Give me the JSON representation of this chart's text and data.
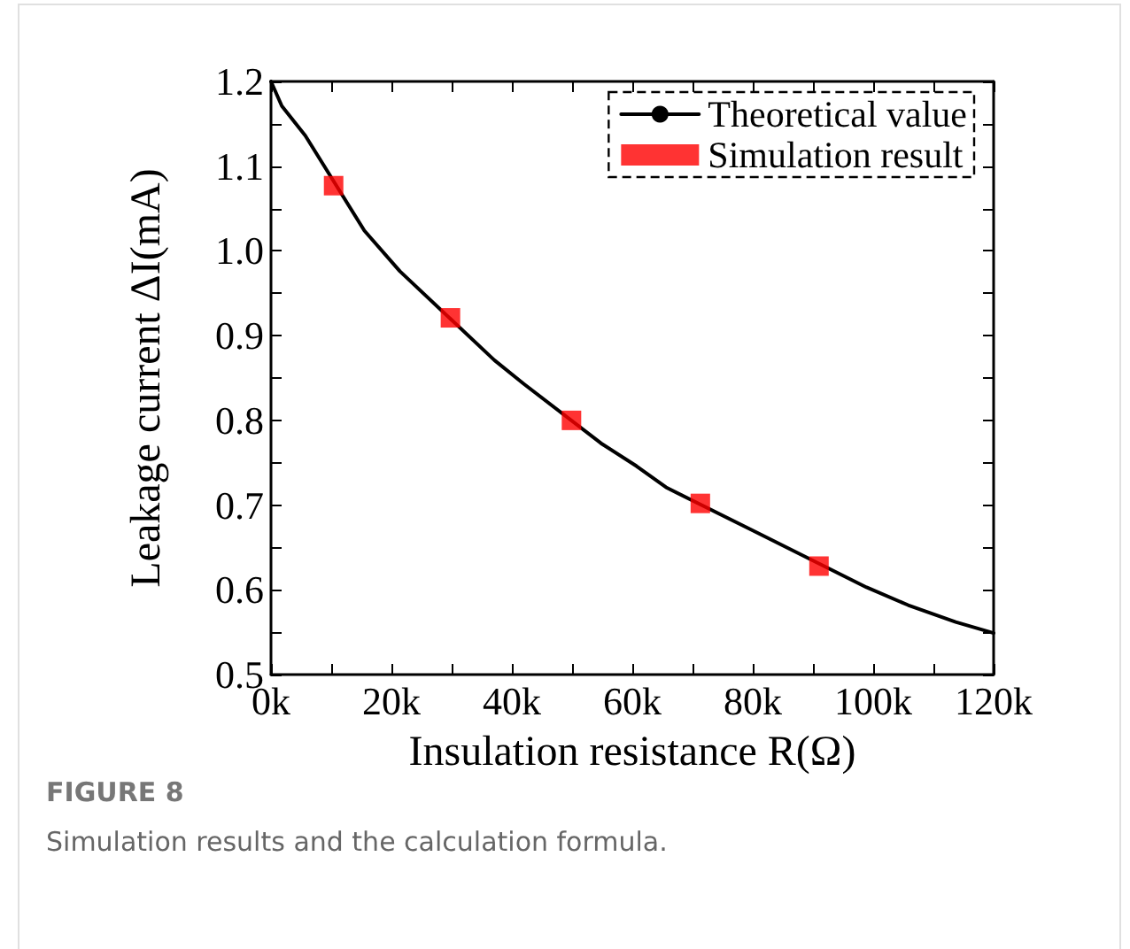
{
  "chart_data": {
    "type": "line",
    "xlabel": "Insulation resistance R(Ω)",
    "ylabel": "Leakage current ΔI(mA)",
    "annotations": [
      "FIGURE 8",
      "Simulation results and the calculation formula."
    ],
    "xlim": [
      0,
      120000
    ],
    "ylim": [
      0.5,
      1.2
    ],
    "xticks": [
      {
        "value": 0,
        "label": "0k"
      },
      {
        "value": 10000,
        "label": null
      },
      {
        "value": 20000,
        "label": "20k"
      },
      {
        "value": 30000,
        "label": null
      },
      {
        "value": 40000,
        "label": "40k"
      },
      {
        "value": 50000,
        "label": null
      },
      {
        "value": 60000,
        "label": "60k"
      },
      {
        "value": 70000,
        "label": null
      },
      {
        "value": 80000,
        "label": "80k"
      },
      {
        "value": 90000,
        "label": null
      },
      {
        "value": 100000,
        "label": "100k"
      },
      {
        "value": 110000,
        "label": null
      },
      {
        "value": 120000,
        "label": "120k"
      }
    ],
    "yticks": [
      0.5,
      {
        "value": 0.55,
        "label": null
      },
      0.6,
      {
        "value": 0.65,
        "label": null
      },
      0.7,
      {
        "value": 0.75,
        "label": null
      },
      0.8,
      {
        "value": 0.85,
        "label": null
      },
      0.9,
      {
        "value": 0.95,
        "label": null
      },
      {
        "value": 1,
        "label": "1.0"
      },
      {
        "value": 1.05,
        "label": null
      },
      1.1,
      {
        "value": 1.15,
        "label": null
      },
      1.2
    ],
    "grid": false,
    "legend": "top right",
    "series": [
      {
        "name": "Theoretical value",
        "color": "#000000",
        "marker": "none",
        "line_style": "solid",
        "x": [
          0,
          1800,
          5700,
          15500,
          21400,
          37100,
          42000,
          54800,
          60700,
          65600,
          80300,
          98900,
          105800,
          113700,
          120000
        ],
        "values": [
          1.2,
          1.171,
          1.136,
          1.024,
          0.976,
          0.871,
          0.843,
          0.773,
          0.746,
          0.721,
          0.669,
          0.603,
          0.582,
          0.562,
          0.549
        ]
      },
      {
        "name": "Simulation result",
        "type": "scatter",
        "color": "#ff0000",
        "marker": "square",
        "x": [
          10400,
          29800,
          49900,
          71300,
          91000
        ],
        "values": [
          1.077,
          0.921,
          0.8,
          0.702,
          0.628
        ]
      }
    ]
  }
}
